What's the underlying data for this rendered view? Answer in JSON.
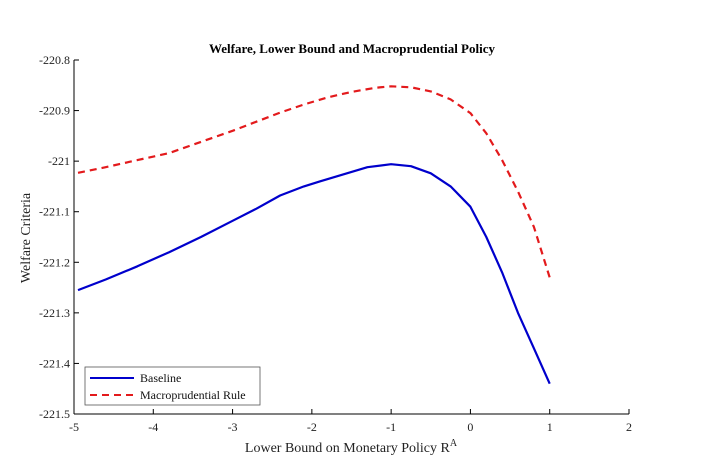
{
  "chart_data": {
    "type": "line",
    "title": "Welfare, Lower Bound and Macroprudential Policy",
    "xlabel": "Lower Bound on Monetary Policy R",
    "xlabel_superscript": "A",
    "ylabel": "Welfare Criteria",
    "xlim": [
      -5,
      2
    ],
    "ylim": [
      -221.5,
      -220.8
    ],
    "xticks": [
      -5,
      -4,
      -3,
      -2,
      -1,
      0,
      1,
      2
    ],
    "xtick_labels": [
      "-5",
      "-4",
      "-3",
      "-2",
      "-1",
      "0",
      "1",
      "2"
    ],
    "yticks": [
      -220.8,
      -220.9,
      -221,
      -221.1,
      -221.2,
      -221.3,
      -221.4,
      -221.5
    ],
    "ytick_labels": [
      "-220.8",
      "-220.9",
      "-221",
      "-221.1",
      "-221.2",
      "-221.3",
      "-221.4",
      "-221.5"
    ],
    "grid": false,
    "legend_position": "bottom-left",
    "series": [
      {
        "name": "Baseline",
        "color": "#0000cc",
        "style": "solid",
        "x": [
          -4.95,
          -4.6,
          -4.2,
          -3.8,
          -3.4,
          -3.0,
          -2.7,
          -2.4,
          -2.1,
          -1.9,
          -1.6,
          -1.3,
          -1.0,
          -0.75,
          -0.5,
          -0.25,
          0.0,
          0.2,
          0.4,
          0.6,
          0.8,
          1.0
        ],
        "y": [
          -221.255,
          -221.234,
          -221.208,
          -221.18,
          -221.15,
          -221.118,
          -221.094,
          -221.068,
          -221.05,
          -221.04,
          -221.026,
          -221.012,
          -221.006,
          -221.01,
          -221.024,
          -221.05,
          -221.09,
          -221.15,
          -221.22,
          -221.3,
          -221.37,
          -221.44
        ]
      },
      {
        "name": "Macroprudential Rule",
        "color": "#e31a1c",
        "style": "dashed",
        "x": [
          -4.95,
          -4.6,
          -4.2,
          -3.8,
          -3.4,
          -3.0,
          -2.7,
          -2.4,
          -2.1,
          -1.8,
          -1.5,
          -1.2,
          -1.0,
          -0.75,
          -0.5,
          -0.25,
          0.0,
          0.2,
          0.4,
          0.6,
          0.8,
          1.0
        ],
        "y": [
          -221.023,
          -221.012,
          -220.998,
          -220.984,
          -220.962,
          -220.94,
          -220.922,
          -220.904,
          -220.888,
          -220.874,
          -220.863,
          -220.855,
          -220.852,
          -220.854,
          -220.862,
          -220.878,
          -220.905,
          -220.945,
          -220.998,
          -221.06,
          -221.13,
          -221.23
        ]
      }
    ]
  }
}
